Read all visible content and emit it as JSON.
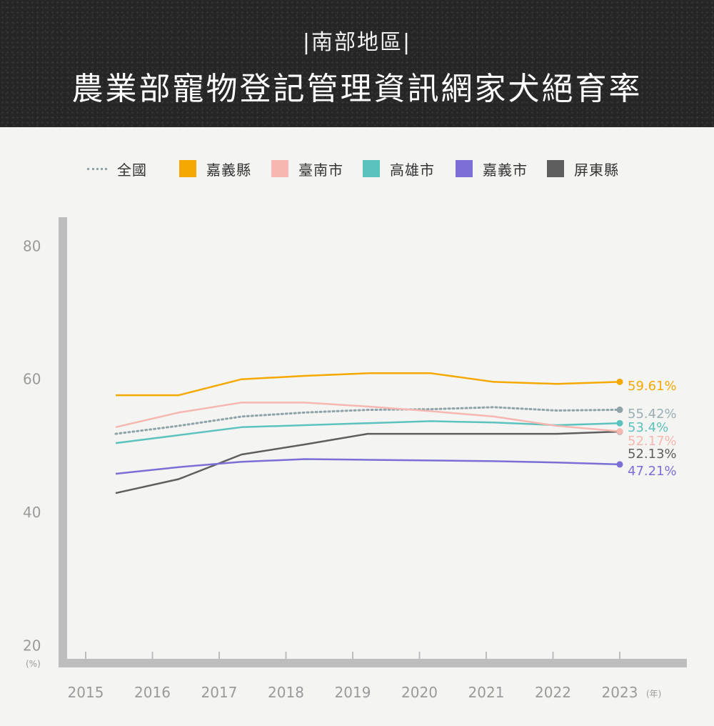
{
  "header": {
    "subtitle": "|南部地區|",
    "title": "農業部寵物登記管理資訊網家犬絕育率"
  },
  "colors": {
    "national": "#8fa3a8",
    "chiayi_county": "#f5a800",
    "tainan": "#f6b7b0",
    "kaohsiung": "#5cc2be",
    "chiayi_city": "#7b6fd6",
    "pingtung": "#5e5e5e"
  },
  "chart_data": {
    "type": "line",
    "title": "農業部寵物登記管理資訊網家犬絕育率",
    "subtitle": "|南部地區|",
    "x": [
      "2015",
      "2016",
      "2017",
      "2018",
      "2019",
      "2020",
      "2021",
      "2022",
      "2023"
    ],
    "ylim": [
      20,
      85
    ],
    "yticks": [
      "20",
      "40",
      "60",
      "80"
    ],
    "ylabel": "(%)",
    "xunit": "(年)",
    "grid": false,
    "legend_position": "top",
    "series": [
      {
        "name": "全國",
        "key": "national",
        "style": "dotted",
        "values": [
          51.8,
          53.0,
          54.4,
          55.0,
          55.4,
          55.5,
          55.8,
          55.3,
          55.42
        ],
        "end_label": "55.42%"
      },
      {
        "name": "嘉義縣",
        "key": "chiayi_county",
        "style": "solid",
        "values": [
          57.6,
          57.6,
          60.0,
          60.5,
          60.9,
          60.9,
          59.6,
          59.3,
          59.61
        ],
        "end_label": "59.61%"
      },
      {
        "name": "臺南市",
        "key": "tainan",
        "style": "solid",
        "values": [
          52.8,
          55.0,
          56.5,
          56.5,
          55.9,
          55.2,
          54.4,
          53.0,
          52.17
        ],
        "end_label": "52.17%"
      },
      {
        "name": "高雄市",
        "key": "kaohsiung",
        "style": "solid",
        "values": [
          50.4,
          51.6,
          52.8,
          53.1,
          53.4,
          53.7,
          53.5,
          53.1,
          53.4
        ],
        "end_label": "53.4%"
      },
      {
        "name": "嘉義市",
        "key": "chiayi_city",
        "style": "solid",
        "values": [
          45.8,
          46.8,
          47.6,
          48.0,
          47.9,
          47.8,
          47.7,
          47.5,
          47.21
        ],
        "end_label": "47.21%"
      },
      {
        "name": "屏東縣",
        "key": "pingtung",
        "style": "solid",
        "values": [
          42.9,
          45.0,
          48.7,
          50.2,
          51.8,
          51.8,
          51.8,
          51.8,
          52.13
        ],
        "end_label": "52.13%"
      }
    ]
  }
}
